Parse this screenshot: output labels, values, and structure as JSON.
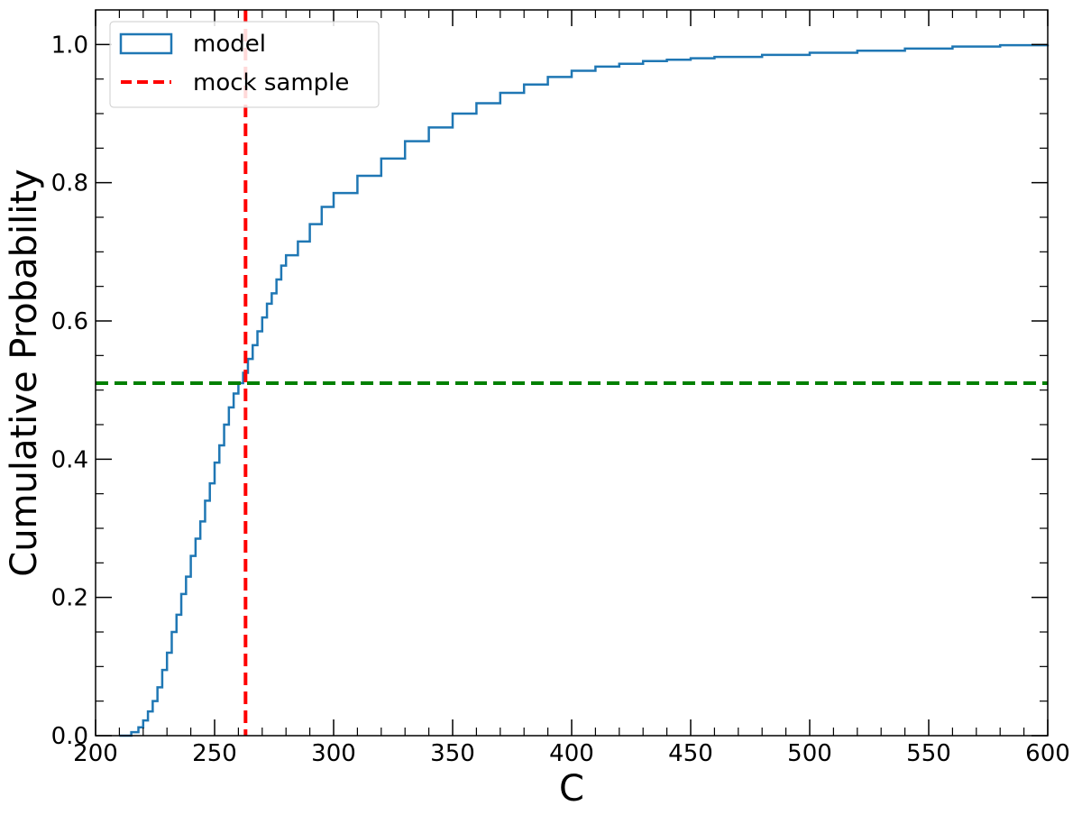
{
  "chart_data": {
    "type": "line",
    "xlabel": "C",
    "ylabel": "Cumulative Probability",
    "xlim": [
      200,
      600
    ],
    "ylim": [
      0.0,
      1.05
    ],
    "xticks": [
      200,
      250,
      300,
      350,
      400,
      450,
      500,
      550,
      600
    ],
    "xtick_labels": [
      "200",
      "250",
      "300",
      "350",
      "400",
      "450",
      "500",
      "550",
      "600"
    ],
    "yticks": [
      0.0,
      0.2,
      0.4,
      0.6,
      0.8,
      1.0
    ],
    "ytick_labels": [
      "0.0",
      "0.2",
      "0.4",
      "0.6",
      "0.8",
      "1.0"
    ],
    "legend_position": "top-left",
    "grid": false,
    "series": [
      {
        "name": "model",
        "style": "step",
        "color": "#1f77b4",
        "x": [
          210,
          215,
          218,
          220,
          222,
          224,
          226,
          228,
          230,
          232,
          234,
          236,
          238,
          240,
          242,
          244,
          246,
          248,
          250,
          252,
          254,
          256,
          258,
          260,
          262,
          264,
          266,
          268,
          270,
          272,
          274,
          276,
          278,
          280,
          285,
          290,
          295,
          300,
          310,
          320,
          330,
          340,
          350,
          360,
          370,
          380,
          390,
          400,
          410,
          420,
          430,
          440,
          450,
          460,
          480,
          500,
          520,
          540,
          560,
          580,
          600
        ],
        "y": [
          0.0,
          0.005,
          0.012,
          0.022,
          0.035,
          0.05,
          0.07,
          0.095,
          0.12,
          0.15,
          0.175,
          0.205,
          0.23,
          0.26,
          0.285,
          0.31,
          0.34,
          0.365,
          0.395,
          0.42,
          0.45,
          0.475,
          0.495,
          0.51,
          0.525,
          0.545,
          0.565,
          0.585,
          0.605,
          0.625,
          0.64,
          0.66,
          0.68,
          0.695,
          0.715,
          0.74,
          0.765,
          0.785,
          0.81,
          0.835,
          0.86,
          0.88,
          0.9,
          0.915,
          0.93,
          0.942,
          0.953,
          0.962,
          0.968,
          0.972,
          0.976,
          0.978,
          0.98,
          0.982,
          0.985,
          0.988,
          0.991,
          0.994,
          0.997,
          0.999,
          1.0
        ]
      },
      {
        "name": "mock sample",
        "style": "vline",
        "color": "#ff0000",
        "x": 263
      },
      {
        "style": "hline",
        "color": "#008000",
        "y": 0.51
      }
    ]
  }
}
